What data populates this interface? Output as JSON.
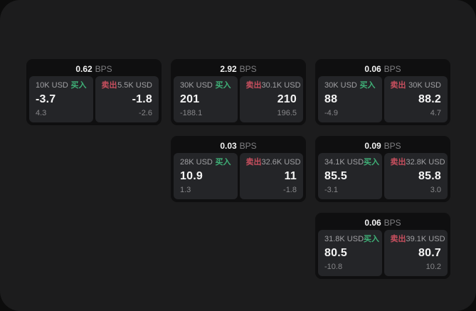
{
  "labels": {
    "bps": "BPS",
    "buy": "买入",
    "sell": "卖出"
  },
  "colors": {
    "buy_green": "#3fb077",
    "sell_red": "#c74f5e",
    "surface": "#1c1c1d",
    "card": "#0f0f10",
    "panel": "#242528"
  },
  "cards": [
    {
      "bps": "0.62",
      "buy": {
        "amount": "10K USD",
        "value": "-3.7",
        "sub": "4.3"
      },
      "sell": {
        "amount": "5.5K USD",
        "value": "-1.8",
        "sub": "-2.6"
      }
    },
    {
      "bps": "2.92",
      "buy": {
        "amount": "30K USD",
        "value": "201",
        "sub": "-188.1"
      },
      "sell": {
        "amount": "30.1K USD",
        "value": "210",
        "sub": "196.5"
      }
    },
    {
      "bps": "0.06",
      "buy": {
        "amount": "30K USD",
        "value": "88",
        "sub": "-4.9"
      },
      "sell": {
        "amount": "30K USD",
        "value": "88.2",
        "sub": "4.7"
      }
    },
    {
      "bps": "0.03",
      "buy": {
        "amount": "28K USD",
        "value": "10.9",
        "sub": "1.3"
      },
      "sell": {
        "amount": "32.6K USD",
        "value": "11",
        "sub": "-1.8"
      }
    },
    {
      "bps": "0.09",
      "buy": {
        "amount": "34.1K USD",
        "value": "85.5",
        "sub": "-3.1"
      },
      "sell": {
        "amount": "32.8K USD",
        "value": "85.8",
        "sub": "3.0"
      }
    },
    {
      "bps": "0.06",
      "buy": {
        "amount": "31.8K USD",
        "value": "80.5",
        "sub": "-10.8"
      },
      "sell": {
        "amount": "39.1K USD",
        "value": "80.7",
        "sub": "10.2"
      }
    }
  ]
}
